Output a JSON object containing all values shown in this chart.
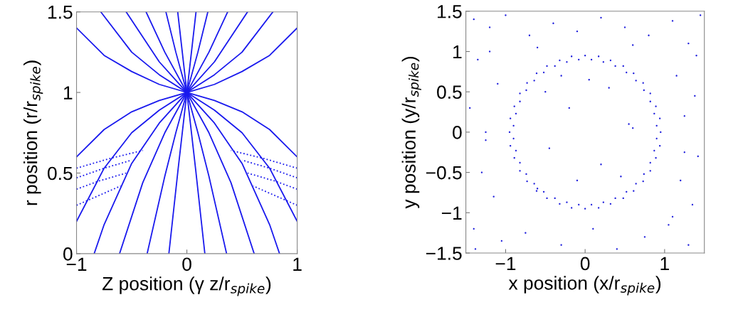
{
  "chart_data": [
    {
      "type": "line",
      "xlabel": "Z position (γ z/r$_{spike}$)",
      "ylabel": "r position (r/r$_{spike}$)",
      "xlim": [
        -1,
        1
      ],
      "xticks": [
        {
          "value": -1,
          "label": "−1"
        },
        0,
        1
      ],
      "ylim": [
        0,
        1.5
      ],
      "yticks": [
        0,
        0.5,
        1,
        1.5
      ],
      "grid": false,
      "legend": false,
      "marker": "none",
      "series": [
        {
          "color": "#1a1aee",
          "line_style": "solid",
          "x": [
            -1,
            -0.75,
            -0.5,
            -0.25,
            0,
            0.25,
            0.5,
            0.75,
            1
          ],
          "values": [
            1.4,
            1.23,
            1.13,
            1.05,
            1,
            0.95,
            0.88,
            0.77,
            0.6
          ]
        },
        {
          "color": "#1a1aee",
          "line_style": "solid",
          "x": [
            -0.78,
            -0.5,
            -0.25,
            0,
            0.25,
            0.5,
            0.75,
            1
          ],
          "values": [
            1.5,
            1.25,
            1.11,
            1,
            0.89,
            0.75,
            0.53,
            0.2
          ]
        },
        {
          "color": "#1a1aee",
          "line_style": "solid",
          "x": [
            -0.55,
            -0.25,
            0,
            0.25,
            0.5,
            0.75,
            0.84
          ],
          "values": [
            1.5,
            1.19,
            1,
            0.81,
            0.56,
            0.18,
            0
          ]
        },
        {
          "color": "#1a1aee",
          "line_style": "solid",
          "x": [
            -0.37,
            -0.2,
            0,
            0.2,
            0.4,
            0.61
          ],
          "values": [
            1.5,
            1.25,
            1,
            0.75,
            0.44,
            0
          ]
        },
        {
          "color": "#1a1aee",
          "line_style": "solid",
          "x": [
            -0.19,
            -0.1,
            0,
            0.1,
            0.2,
            0.36
          ],
          "values": [
            1.5,
            1.25,
            1,
            0.75,
            0.48,
            0
          ]
        },
        {
          "color": "#1a1aee",
          "line_style": "solid",
          "x": [
            -0.083,
            0,
            0.08,
            0.163
          ],
          "values": [
            1.5,
            1,
            0.52,
            0
          ]
        },
        {
          "color": "#1a1aee",
          "line_style": "solid",
          "x": [
            1,
            0.75,
            0.5,
            0.25,
            0,
            -0.25,
            -0.5,
            -0.75,
            -1
          ],
          "values": [
            1.4,
            1.23,
            1.13,
            1.05,
            1,
            0.95,
            0.88,
            0.77,
            0.6
          ]
        },
        {
          "color": "#1a1aee",
          "line_style": "solid",
          "x": [
            0.78,
            0.5,
            0.25,
            0,
            -0.25,
            -0.5,
            -0.75,
            -1
          ],
          "values": [
            1.5,
            1.25,
            1.11,
            1,
            0.89,
            0.75,
            0.53,
            0.2
          ]
        },
        {
          "color": "#1a1aee",
          "line_style": "solid",
          "x": [
            0.55,
            0.25,
            0,
            -0.25,
            -0.5,
            -0.75,
            -0.84
          ],
          "values": [
            1.5,
            1.19,
            1,
            0.81,
            0.56,
            0.18,
            0
          ]
        },
        {
          "color": "#1a1aee",
          "line_style": "solid",
          "x": [
            0.37,
            0.2,
            0,
            -0.2,
            -0.4,
            -0.61
          ],
          "values": [
            1.5,
            1.25,
            1,
            0.75,
            0.44,
            0
          ]
        },
        {
          "color": "#1a1aee",
          "line_style": "solid",
          "x": [
            0.19,
            0.1,
            0,
            -0.1,
            -0.2,
            -0.36
          ],
          "values": [
            1.5,
            1.25,
            1,
            0.75,
            0.48,
            0
          ]
        },
        {
          "color": "#1a1aee",
          "line_style": "solid",
          "x": [
            0.083,
            0,
            -0.08,
            -0.163
          ],
          "values": [
            1.5,
            1,
            0.52,
            0
          ]
        },
        {
          "color": "#1a1aee",
          "line_style": "dotted",
          "x": [
            -1,
            -0.7,
            -0.4
          ],
          "values": [
            0.53,
            0.59,
            0.64
          ]
        },
        {
          "color": "#1a1aee",
          "line_style": "dotted",
          "x": [
            -1,
            -0.75,
            -0.5
          ],
          "values": [
            0.47,
            0.53,
            0.58
          ]
        },
        {
          "color": "#1a1aee",
          "line_style": "dotted",
          "x": [
            -1,
            -0.8,
            -0.55
          ],
          "values": [
            0.4,
            0.45,
            0.5
          ]
        },
        {
          "color": "#1a1aee",
          "line_style": "dotted",
          "x": [
            -1,
            -0.8,
            -0.6
          ],
          "values": [
            0.3,
            0.36,
            0.42
          ]
        },
        {
          "color": "#1a1aee",
          "line_style": "dotted",
          "x": [
            1,
            0.7,
            0.4
          ],
          "values": [
            0.53,
            0.59,
            0.64
          ]
        },
        {
          "color": "#1a1aee",
          "line_style": "dotted",
          "x": [
            1,
            0.75,
            0.5
          ],
          "values": [
            0.47,
            0.53,
            0.58
          ]
        },
        {
          "color": "#1a1aee",
          "line_style": "dotted",
          "x": [
            1,
            0.8,
            0.55
          ],
          "values": [
            0.4,
            0.45,
            0.5
          ]
        },
        {
          "color": "#1a1aee",
          "line_style": "dotted",
          "x": [
            1,
            0.8,
            0.6
          ],
          "values": [
            0.3,
            0.36,
            0.42
          ]
        }
      ]
    },
    {
      "type": "scatter",
      "xlabel": "x position (x/r$_{spike}$)",
      "ylabel": "y position (y/r$_{spike}$)",
      "xlim": [
        -1.5,
        1.5
      ],
      "xticks": [
        {
          "value": -1,
          "label": "−1"
        },
        0,
        1
      ],
      "ylim": [
        -1.5,
        1.5
      ],
      "yticks": [
        {
          "value": -1.5,
          "label": "−1.5"
        },
        {
          "value": -1,
          "label": "−1"
        },
        {
          "value": -0.5,
          "label": "−0.5"
        },
        0,
        0.5,
        1,
        1.5
      ],
      "grid": false,
      "legend": false,
      "marker": "circle",
      "series": [
        {
          "color": "#2222dd",
          "x": [
            0.95,
            0.94,
            0.89,
            0.82,
            0.73,
            0.61,
            0.48,
            0.32,
            0.17,
            0,
            -0.17,
            -0.32,
            -0.48,
            -0.61,
            -0.73,
            -0.82,
            -0.89,
            -0.94,
            -0.95,
            -0.94,
            -0.89,
            -0.82,
            -0.73,
            -0.61,
            -0.48,
            -0.32,
            -0.17,
            0,
            0.17,
            0.32,
            0.48,
            0.61,
            0.73,
            0.82,
            0.89,
            0.94,
            0.9,
            0.87,
            0.82,
            0.74,
            0.64,
            0.52,
            0.38,
            0.23,
            0.08,
            -0.08,
            -0.23,
            -0.38,
            -0.52,
            -0.64,
            -0.74,
            -0.82,
            -0.87,
            -0.9,
            -0.9,
            -0.87,
            -0.82,
            -0.74,
            -0.64,
            -0.52,
            -0.38,
            -0.23,
            -0.08,
            0.08,
            0.23,
            0.38,
            0.52,
            0.64,
            0.74,
            0.82,
            0.87,
            0.9
          ],
          "values": [
            0,
            0.17,
            0.32,
            0.48,
            0.61,
            0.73,
            0.82,
            0.89,
            0.94,
            0.95,
            0.94,
            0.89,
            0.82,
            0.73,
            0.61,
            0.48,
            0.32,
            0.17,
            0,
            -0.17,
            -0.32,
            -0.48,
            -0.61,
            -0.73,
            -0.82,
            -0.89,
            -0.94,
            -0.95,
            -0.94,
            -0.89,
            -0.82,
            -0.73,
            -0.61,
            -0.48,
            -0.32,
            -0.17,
            0.08,
            0.23,
            0.38,
            0.52,
            0.64,
            0.74,
            0.82,
            0.87,
            0.9,
            0.9,
            0.87,
            0.82,
            0.74,
            0.64,
            0.52,
            0.38,
            0.23,
            0.08,
            -0.08,
            -0.23,
            -0.38,
            -0.52,
            -0.64,
            -0.74,
            -0.82,
            -0.87,
            -0.9,
            -0.9,
            -0.87,
            -0.82,
            -0.74,
            -0.64,
            -0.52,
            -0.38,
            -0.23,
            -0.08
          ]
        },
        {
          "color": "#2222dd",
          "x": [
            -1.4,
            -1.2,
            -1.0,
            -0.7,
            -0.4,
            -0.1,
            0.2,
            0.5,
            0.8,
            1.1,
            1.3,
            1.45,
            -1.35,
            -1.1,
            -0.6,
            0.6,
            1.15,
            1.4,
            -1.45,
            -1.25,
            1.25,
            1.42,
            -1.3,
            -1.15,
            1.2,
            1.35,
            -1.4,
            -1.05,
            -0.75,
            -0.3,
            0.1,
            0.4,
            0.75,
            1.05,
            1.3,
            -0.5,
            -0.2,
            0.3,
            0.55,
            -0.45,
            0.2,
            -0.1,
            0.45,
            -0.3,
            0.05,
            -0.6,
            0.6,
            -1.2,
            1.1,
            -1.25,
            1.25,
            -1.38,
            1.38
          ],
          "values": [
            1.4,
            1.3,
            1.45,
            1.2,
            1.35,
            1.25,
            1.42,
            1.3,
            1.2,
            1.38,
            1.1,
            1.45,
            0.9,
            0.6,
            1.05,
            1.08,
            0.7,
            0.95,
            0.3,
            -0.1,
            0.2,
            -0.3,
            -0.5,
            -0.8,
            -0.6,
            -0.9,
            -1.2,
            -1.35,
            -1.25,
            -1.4,
            -1.2,
            -1.45,
            -1.3,
            -1.15,
            -1.4,
            0.5,
            0.3,
            0.55,
            0.1,
            -0.2,
            -0.4,
            -0.6,
            -0.55,
            0.7,
            0.65,
            -0.7,
            0.05,
            1.0,
            -1.05,
            0.0,
            -0.25,
            -1.45,
            0.45
          ]
        }
      ]
    }
  ]
}
